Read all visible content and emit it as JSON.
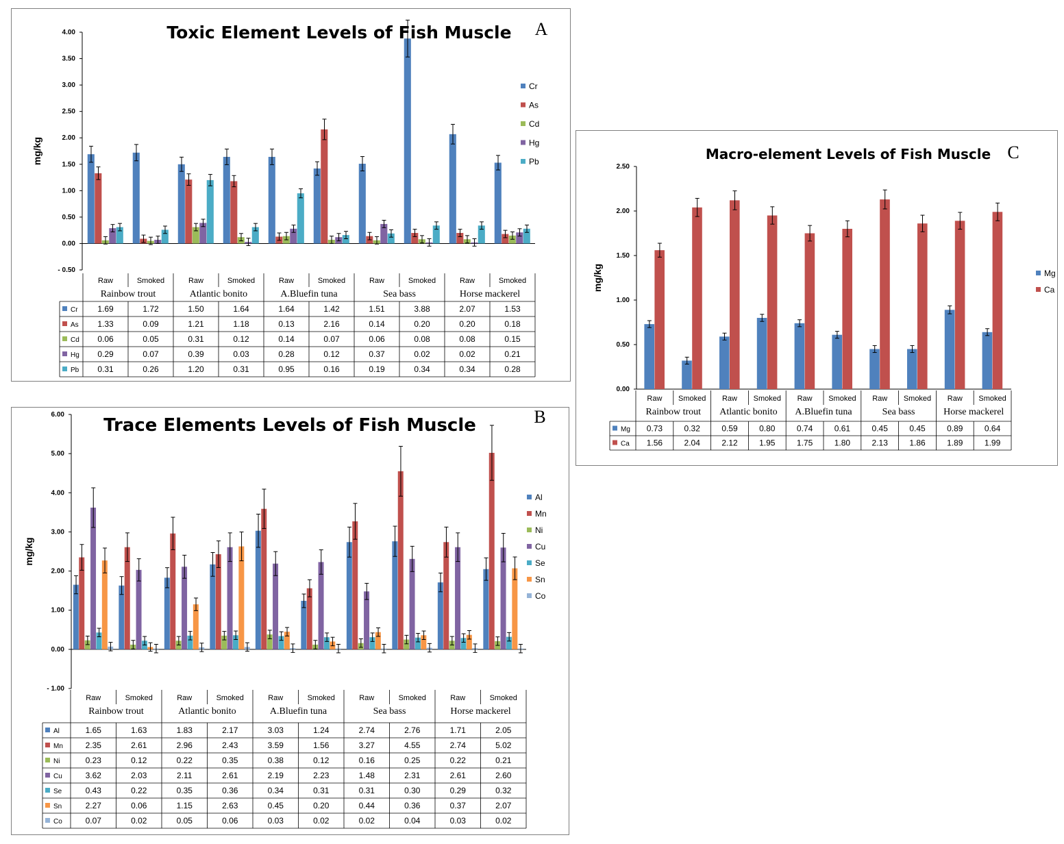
{
  "chart_data": [
    {
      "panel": "A",
      "type": "bar",
      "title": "Toxic Element Levels of Fish Muscle",
      "ylabel": "mg/kg",
      "xlabel": "",
      "ylim": [
        -0.5,
        4.0
      ],
      "yticks": [
        "4.00",
        "3.50",
        "3.00",
        "2.50",
        "2.00",
        "1.50",
        "1.00",
        "0.50",
        "0.00",
        "- 0.50"
      ],
      "categories": [
        "Raw",
        "Smoked",
        "Raw",
        "Smoked",
        "Raw",
        "Smoked",
        "Raw",
        "Smoked",
        "Raw",
        "Smoked"
      ],
      "groups": [
        "Rainbow trout",
        "Atlantic bonito",
        "A.Bluefin tuna",
        "Sea bass",
        "Horse mackerel"
      ],
      "legend_position": "right",
      "grid": false,
      "series": [
        {
          "name": "Cr",
          "color": "#4f81bd",
          "values": [
            1.69,
            1.72,
            1.5,
            1.64,
            1.64,
            1.42,
            1.51,
            3.88,
            2.07,
            1.53
          ],
          "labels": [
            "1.69",
            "1.72",
            "1.50",
            "1.64",
            "1.64",
            "1.42",
            "1.51",
            "3.88",
            "2.07",
            "1.53"
          ]
        },
        {
          "name": "As",
          "color": "#c0504d",
          "values": [
            1.33,
            0.09,
            1.21,
            1.18,
            0.13,
            2.16,
            0.14,
            0.2,
            0.2,
            0.18
          ],
          "labels": [
            "1.33",
            "0.09",
            "1.21",
            "1.18",
            "0.13",
            "2.16",
            "0.14",
            "0.20",
            "0.20",
            "0.18"
          ]
        },
        {
          "name": "Cd",
          "color": "#9bbb59",
          "values": [
            0.06,
            0.05,
            0.31,
            0.12,
            0.14,
            0.07,
            0.06,
            0.08,
            0.08,
            0.15
          ],
          "labels": [
            "0.06",
            "0.05",
            "0.31",
            "0.12",
            "0.14",
            "0.07",
            "0.06",
            "0.08",
            "0.08",
            "0.15"
          ]
        },
        {
          "name": "Hg",
          "color": "#8064a2",
          "values": [
            0.29,
            0.07,
            0.39,
            0.03,
            0.28,
            0.12,
            0.37,
            0.02,
            0.02,
            0.21
          ],
          "labels": [
            "0.29",
            "0.07",
            "0.39",
            "0.03",
            "0.28",
            "0.12",
            "0.37",
            "0.02",
            "0.02",
            "0.21"
          ]
        },
        {
          "name": "Pb",
          "color": "#4bacc6",
          "values": [
            0.31,
            0.26,
            1.2,
            0.31,
            0.95,
            0.16,
            0.19,
            0.34,
            0.34,
            0.28
          ],
          "labels": [
            "0.31",
            "0.26",
            "1.20",
            "0.31",
            "0.95",
            "0.16",
            "0.19",
            "0.34",
            "0.34",
            "0.28"
          ]
        }
      ]
    },
    {
      "panel": "B",
      "type": "bar",
      "title": "Trace Elements Levels of Fish Muscle",
      "ylabel": "mg/kg",
      "xlabel": "",
      "ylim": [
        -1.0,
        6.0
      ],
      "yticks": [
        "6.00",
        "5.00",
        "4.00",
        "3.00",
        "2.00",
        "1.00",
        "0.00",
        "- 1.00"
      ],
      "categories": [
        "Raw",
        "Smoked",
        "Raw",
        "Smoked",
        "Raw",
        "Smoked",
        "Raw",
        "Smoked",
        "Raw",
        "Smoked"
      ],
      "groups": [
        "Rainbow trout",
        "Atlantic bonito",
        "A.Bluefin tuna",
        "Sea bass",
        "Horse mackerel"
      ],
      "legend_position": "right",
      "grid": false,
      "series": [
        {
          "name": "Al",
          "color": "#4f81bd",
          "values": [
            1.65,
            1.63,
            1.83,
            2.17,
            3.03,
            1.24,
            2.74,
            2.76,
            1.71,
            2.05
          ],
          "labels": [
            "1.65",
            "1.63",
            "1.83",
            "2.17",
            "3.03",
            "1.24",
            "2.74",
            "2.76",
            "1.71",
            "2.05"
          ]
        },
        {
          "name": "Mn",
          "color": "#c0504d",
          "values": [
            2.35,
            2.61,
            2.96,
            2.43,
            3.59,
            1.56,
            3.27,
            4.55,
            2.74,
            5.02
          ],
          "labels": [
            "2.35",
            "2.61",
            "2.96",
            "2.43",
            "3.59",
            "1.56",
            "3.27",
            "4.55",
            "2.74",
            "5.02"
          ]
        },
        {
          "name": "Ni",
          "color": "#9bbb59",
          "values": [
            0.23,
            0.12,
            0.22,
            0.35,
            0.38,
            0.12,
            0.16,
            0.25,
            0.22,
            0.21
          ],
          "labels": [
            "0.23",
            "0.12",
            "0.22",
            "0.35",
            "0.38",
            "0.12",
            "0.16",
            "0.25",
            "0.22",
            "0.21"
          ]
        },
        {
          "name": "Cu",
          "color": "#8064a2",
          "values": [
            3.62,
            2.03,
            2.11,
            2.61,
            2.19,
            2.23,
            1.48,
            2.31,
            2.61,
            2.6
          ],
          "labels": [
            "3.62",
            "2.03",
            "2.11",
            "2.61",
            "2.19",
            "2.23",
            "1.48",
            "2.31",
            "2.61",
            "2.60"
          ]
        },
        {
          "name": "Se",
          "color": "#4bacc6",
          "values": [
            0.43,
            0.22,
            0.35,
            0.36,
            0.34,
            0.31,
            0.31,
            0.3,
            0.29,
            0.32
          ],
          "labels": [
            "0.43",
            "0.22",
            "0.35",
            "0.36",
            "0.34",
            "0.31",
            "0.31",
            "0.30",
            "0.29",
            "0.32"
          ]
        },
        {
          "name": "Sn",
          "color": "#f79646",
          "values": [
            2.27,
            0.06,
            1.15,
            2.63,
            0.45,
            0.2,
            0.44,
            0.36,
            0.37,
            2.07
          ],
          "labels": [
            "2.27",
            "0.06",
            "1.15",
            "2.63",
            "0.45",
            "0.20",
            "0.44",
            "0.36",
            "0.37",
            "2.07"
          ]
        },
        {
          "name": "Co",
          "color": "#95b3d7",
          "values": [
            0.07,
            0.02,
            0.05,
            0.06,
            0.03,
            0.02,
            0.02,
            0.04,
            0.03,
            0.02
          ],
          "labels": [
            "0.07",
            "0.02",
            "0.05",
            "0.06",
            "0.03",
            "0.02",
            "0.02",
            "0.04",
            "0.03",
            "0.02"
          ]
        }
      ]
    },
    {
      "panel": "C",
      "type": "bar",
      "title": "Macro-element Levels of Fish Muscle",
      "ylabel": "mg/kg",
      "xlabel": "",
      "ylim": [
        0.0,
        2.5
      ],
      "yticks": [
        "2.50",
        "2.00",
        "1.50",
        "1.00",
        "0.50",
        "0.00"
      ],
      "categories": [
        "Raw",
        "Smoked",
        "Raw",
        "Smoked",
        "Raw",
        "Smoked",
        "Raw",
        "Smoked",
        "Raw",
        "Smoked"
      ],
      "groups": [
        "Rainbow trout",
        "Atlantic bonito",
        "A.Bluefin tuna",
        "Sea bass",
        "Horse mackerel"
      ],
      "legend_position": "right",
      "grid": false,
      "series": [
        {
          "name": "Mg",
          "color": "#4f81bd",
          "values": [
            0.73,
            0.32,
            0.59,
            0.8,
            0.74,
            0.61,
            0.45,
            0.45,
            0.89,
            0.64
          ],
          "labels": [
            "0.73",
            "0.32",
            "0.59",
            "0.80",
            "0.74",
            "0.61",
            "0.45",
            "0.45",
            "0.89",
            "0.64"
          ]
        },
        {
          "name": "Ca",
          "color": "#c0504d",
          "values": [
            1.56,
            2.04,
            2.12,
            1.95,
            1.75,
            1.8,
            2.13,
            1.86,
            1.89,
            1.99
          ],
          "labels": [
            "1.56",
            "2.04",
            "2.12",
            "1.95",
            "1.75",
            "1.80",
            "2.13",
            "1.86",
            "1.89",
            "1.99"
          ]
        }
      ]
    }
  ]
}
